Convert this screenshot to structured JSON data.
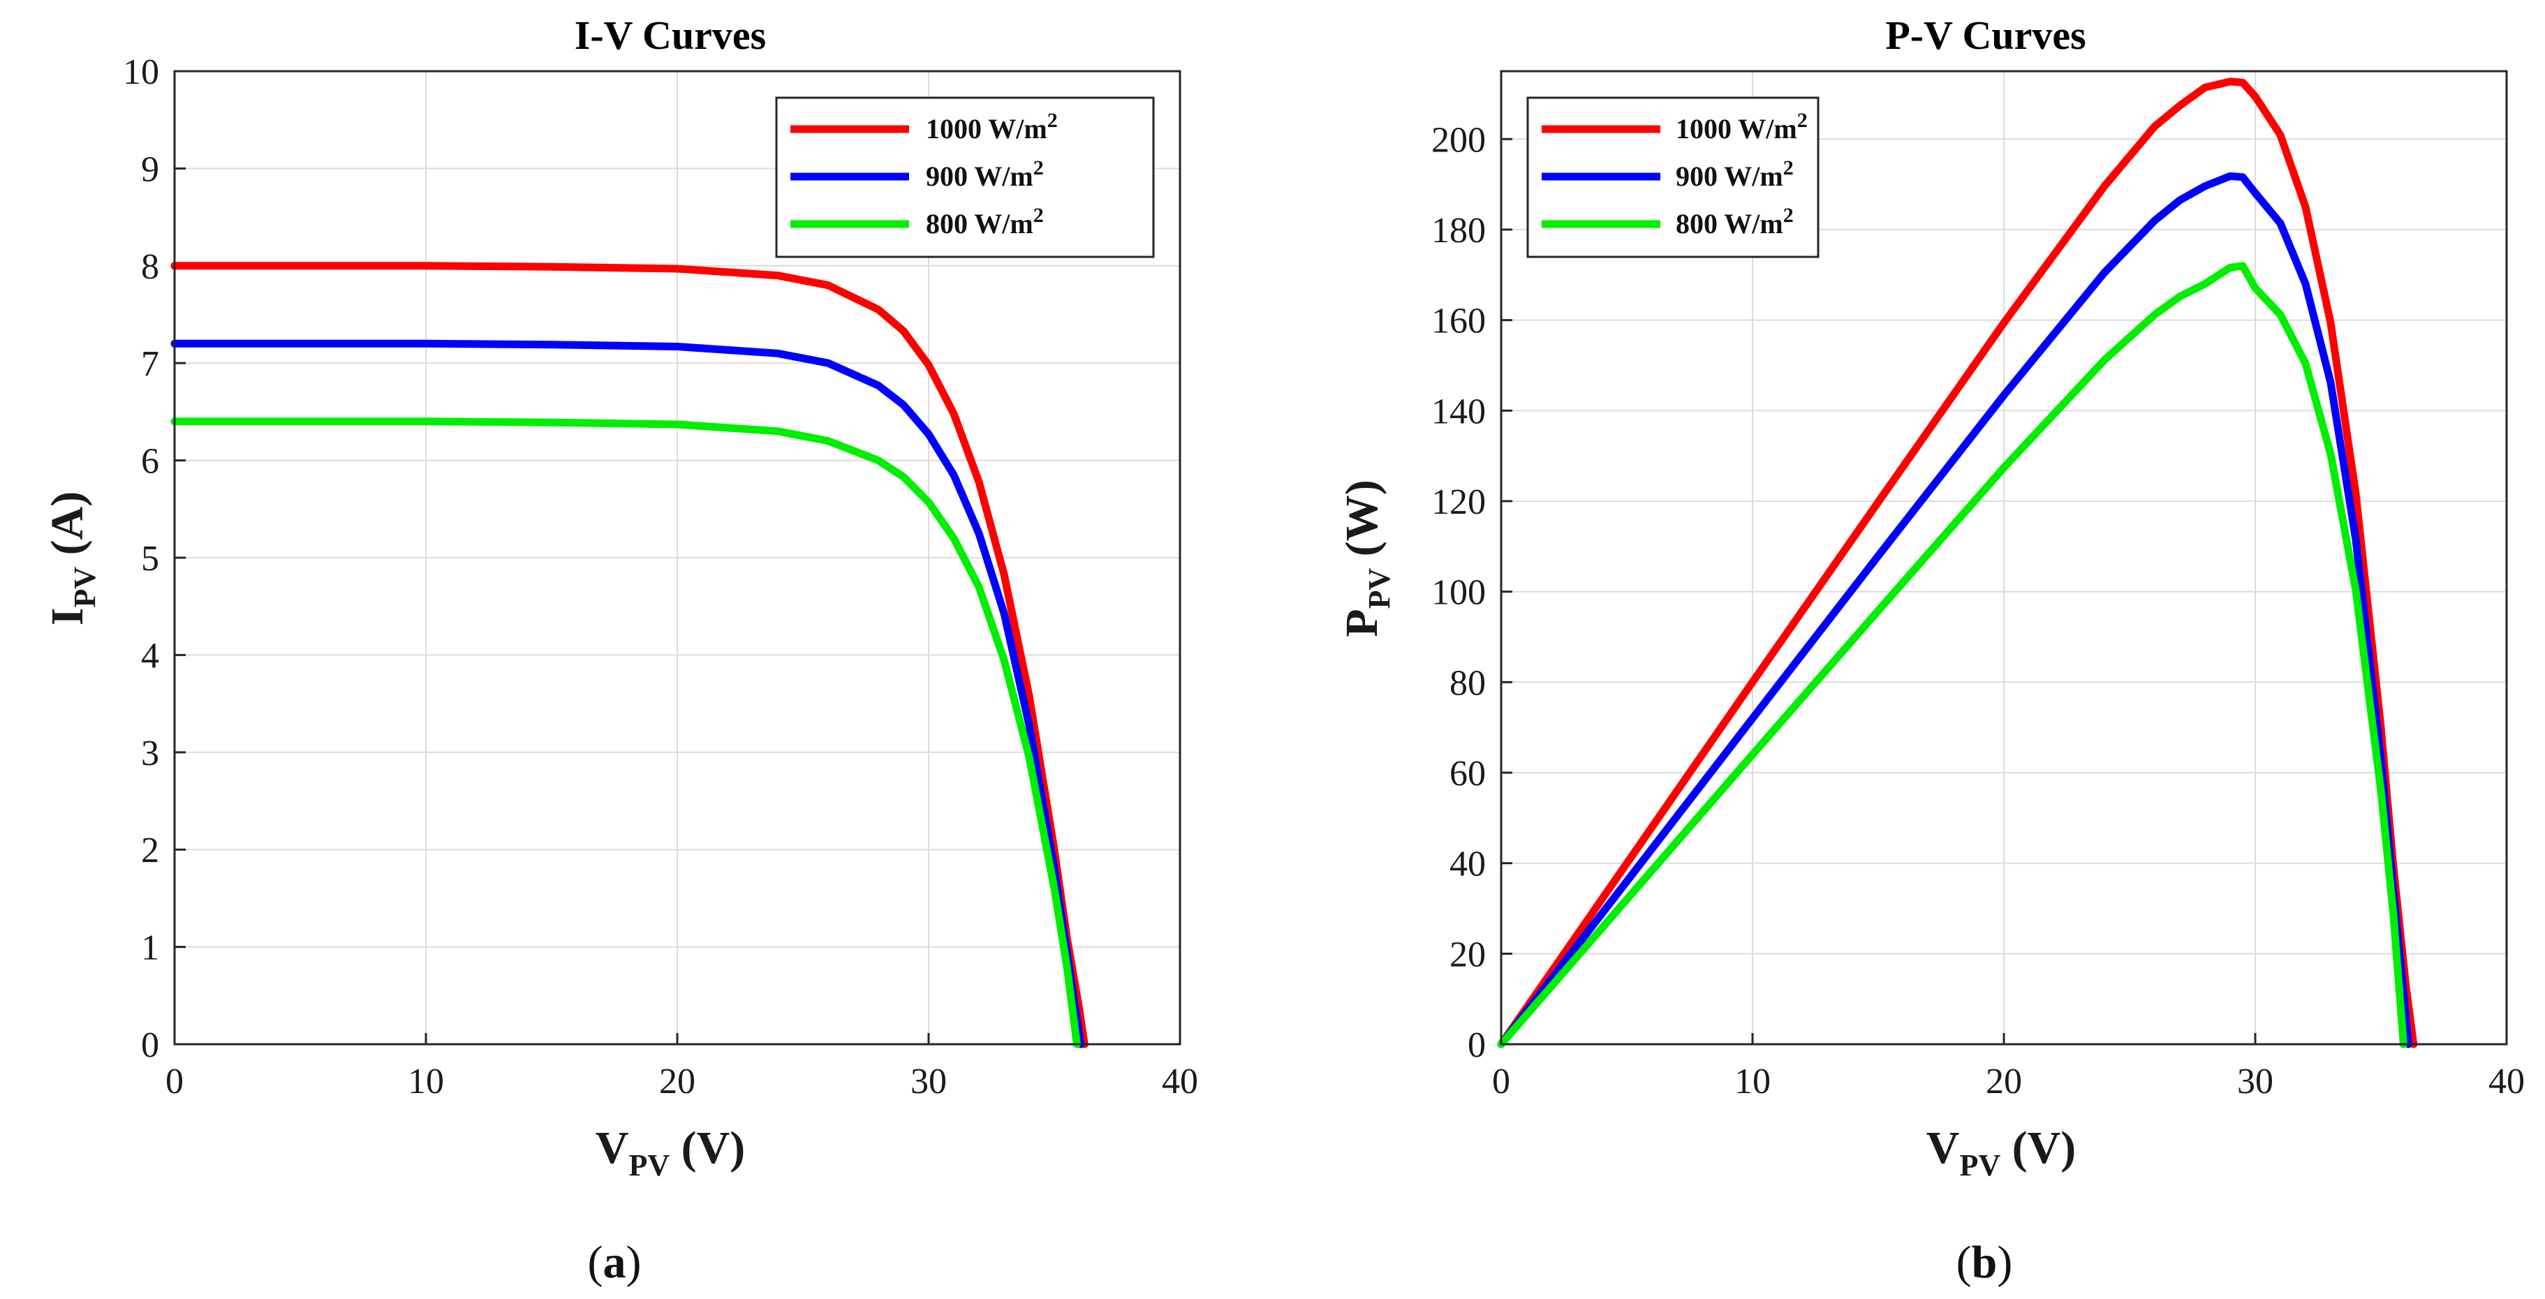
{
  "figure": {
    "captions": [
      {
        "open": "(",
        "letter": "a",
        "close": ")"
      },
      {
        "open": "(",
        "letter": "b",
        "close": ")"
      }
    ]
  },
  "chart_data": [
    {
      "type": "line",
      "title": "I-V Curves",
      "xlabel": {
        "main": "V",
        "sub": "PV",
        "unit": " (V)"
      },
      "ylabel": {
        "main": "I",
        "sub": "PV",
        "unit": " (A)"
      },
      "xlim": [
        0,
        40
      ],
      "ylim": [
        0,
        10
      ],
      "xticks": [
        0,
        10,
        20,
        30,
        40
      ],
      "yticks": [
        0,
        1,
        2,
        3,
        4,
        5,
        6,
        7,
        8,
        9,
        10
      ],
      "grid": true,
      "legend_position": "top-right",
      "series": [
        {
          "name": "1000 W/m",
          "sup": "2",
          "color": "#ff0000",
          "x": [
            0,
            5,
            10,
            15,
            20,
            24,
            26,
            28,
            29,
            30,
            31,
            32,
            33,
            34,
            35,
            35.5,
            36,
            36.2
          ],
          "y": [
            8.0,
            8.0,
            8.0,
            7.99,
            7.97,
            7.9,
            7.8,
            7.55,
            7.33,
            6.98,
            6.48,
            5.78,
            4.83,
            3.58,
            2.0,
            1.1,
            0.35,
            0
          ]
        },
        {
          "name": "900 W/m",
          "sup": "2",
          "color": "#0000ff",
          "x": [
            0,
            5,
            10,
            15,
            20,
            24,
            26,
            28,
            29,
            30,
            31,
            32,
            33,
            34,
            35,
            35.5,
            36.05
          ],
          "y": [
            7.2,
            7.2,
            7.2,
            7.19,
            7.17,
            7.1,
            7.0,
            6.77,
            6.57,
            6.27,
            5.85,
            5.25,
            4.43,
            3.28,
            1.8,
            0.95,
            0
          ]
        },
        {
          "name": "800 W/m",
          "sup": "2",
          "color": "#00ee00",
          "x": [
            0,
            5,
            10,
            15,
            20,
            24,
            26,
            28,
            29,
            30,
            31,
            32,
            33,
            34,
            35,
            35.5,
            35.9
          ],
          "y": [
            6.4,
            6.4,
            6.4,
            6.39,
            6.37,
            6.3,
            6.2,
            6.0,
            5.83,
            5.57,
            5.2,
            4.7,
            3.95,
            2.95,
            1.6,
            0.8,
            0
          ]
        }
      ]
    },
    {
      "type": "line",
      "title": "P-V Curves",
      "xlabel": {
        "main": "V",
        "sub": "PV",
        "unit": " (V)"
      },
      "ylabel": {
        "main": "P",
        "sub": "PV",
        "unit": " (W)"
      },
      "xlim": [
        0,
        40
      ],
      "ylim": [
        0,
        215
      ],
      "xticks": [
        0,
        10,
        20,
        30,
        40
      ],
      "yticks": [
        0,
        20,
        40,
        60,
        80,
        100,
        120,
        140,
        160,
        180,
        200
      ],
      "grid": true,
      "legend_position": "top-left",
      "series": [
        {
          "name": "1000 W/m",
          "sup": "2",
          "color": "#ff0000",
          "x": [
            0,
            5,
            10,
            15,
            20,
            24,
            26,
            27,
            28,
            29,
            29.5,
            30,
            31,
            32,
            33,
            34,
            35,
            35.5,
            36,
            36.3
          ],
          "y": [
            0,
            40,
            80,
            119.8,
            159.4,
            189.6,
            202.8,
            207.4,
            211.4,
            212.7,
            212.5,
            209.4,
            200.9,
            185.0,
            159.4,
            121.7,
            70.0,
            39.0,
            12.6,
            0
          ]
        },
        {
          "name": "900 W/m",
          "sup": "2",
          "color": "#0000ff",
          "x": [
            0,
            5,
            10,
            15,
            20,
            24,
            26,
            27,
            28,
            29,
            29.5,
            30,
            31,
            32,
            33,
            34,
            35,
            35.5,
            36.1
          ],
          "y": [
            0,
            36,
            72,
            107.9,
            143.4,
            170.5,
            182.0,
            186.5,
            189.6,
            191.8,
            191.6,
            188.1,
            181.4,
            168.0,
            146.2,
            111.5,
            63.0,
            33.7,
            0
          ]
        },
        {
          "name": "800 W/m",
          "sup": "2",
          "color": "#00ee00",
          "x": [
            0,
            5,
            10,
            15,
            20,
            24,
            26,
            27,
            28,
            29,
            29.5,
            30,
            31,
            32,
            33,
            34,
            35,
            35.5,
            35.9
          ],
          "y": [
            0,
            32,
            64,
            95.8,
            127.4,
            151.2,
            161.2,
            165.2,
            168.0,
            171.6,
            172.0,
            167.1,
            161.2,
            150.4,
            130.4,
            100.3,
            56.0,
            28.4,
            0
          ]
        }
      ]
    }
  ]
}
